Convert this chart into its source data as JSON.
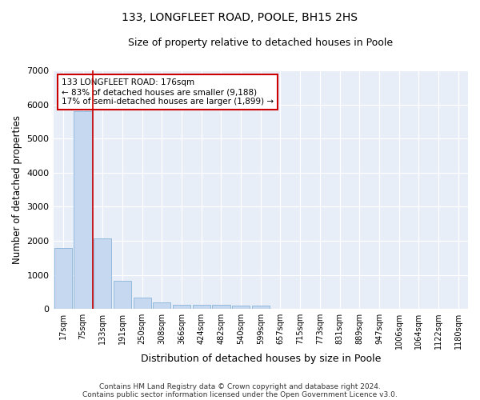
{
  "title": "133, LONGFLEET ROAD, POOLE, BH15 2HS",
  "subtitle": "Size of property relative to detached houses in Poole",
  "xlabel": "Distribution of detached houses by size in Poole",
  "ylabel": "Number of detached properties",
  "bar_color": "#c5d8f0",
  "bar_edge_color": "#89b4d9",
  "background_color": "#e8eef8",
  "grid_color": "#ffffff",
  "categories": [
    "17sqm",
    "75sqm",
    "133sqm",
    "191sqm",
    "250sqm",
    "308sqm",
    "366sqm",
    "424sqm",
    "482sqm",
    "540sqm",
    "599sqm",
    "657sqm",
    "715sqm",
    "773sqm",
    "831sqm",
    "889sqm",
    "947sqm",
    "1006sqm",
    "1064sqm",
    "1122sqm",
    "1180sqm"
  ],
  "values": [
    1780,
    5800,
    2060,
    820,
    340,
    190,
    120,
    110,
    110,
    90,
    90,
    0,
    0,
    0,
    0,
    0,
    0,
    0,
    0,
    0,
    0
  ],
  "vline_color": "#cc0000",
  "annotation_text": "133 LONGFLEET ROAD: 176sqm\n← 83% of detached houses are smaller (9,188)\n17% of semi-detached houses are larger (1,899) →",
  "annotation_box_color": "#ffffff",
  "annotation_box_edge_color": "#cc0000",
  "ylim": [
    0,
    7000
  ],
  "yticks": [
    0,
    1000,
    2000,
    3000,
    4000,
    5000,
    6000,
    7000
  ],
  "footer_line1": "Contains HM Land Registry data © Crown copyright and database right 2024.",
  "footer_line2": "Contains public sector information licensed under the Open Government Licence v3.0."
}
